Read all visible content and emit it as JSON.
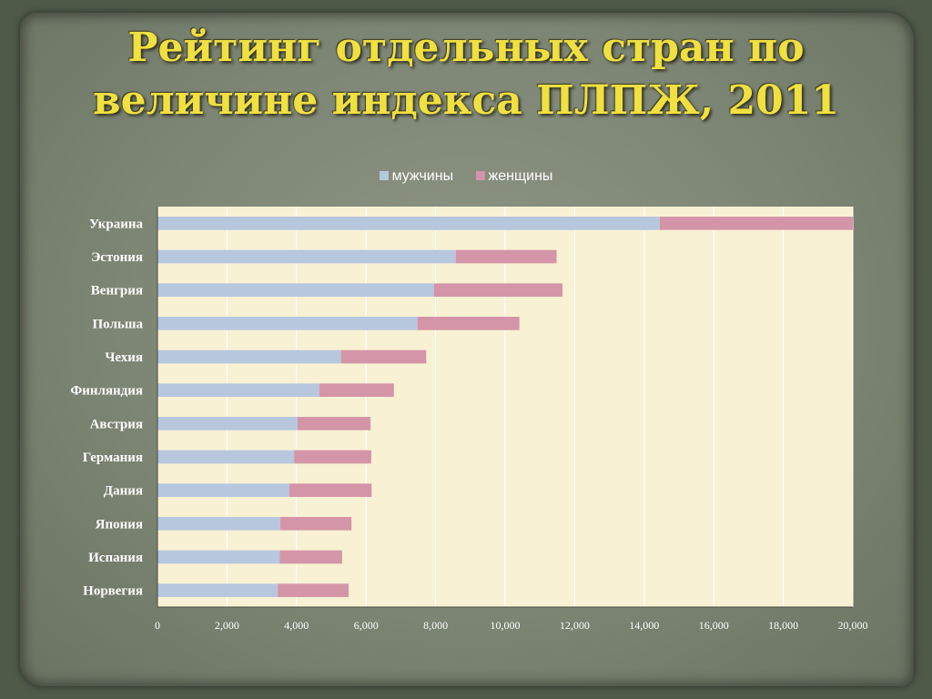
{
  "title_lines": [
    "Рейтинг отдельных стран по",
    "величине  индекса ПЛПЖ, 2011"
  ],
  "colors": {
    "men": "#b7c7de",
    "women": "#d495a8",
    "plot_bg": "#f8f1d4",
    "grid": "#ffffff"
  },
  "chart_data": {
    "type": "bar",
    "orientation": "horizontal",
    "stacked": true,
    "categories": [
      "Украина",
      "Эстония",
      "Венгрия",
      "Польша",
      "Чехия",
      "Финляндия",
      "Австрия",
      "Германия",
      "Дания",
      "Япония",
      "Испания",
      "Норвегия"
    ],
    "series": [
      {
        "name": "мужчины",
        "values": [
          14450,
          8580,
          7950,
          7480,
          5280,
          4660,
          4030,
          3930,
          3790,
          3530,
          3520,
          3460
        ]
      },
      {
        "name": "женщины",
        "values": [
          5550,
          2900,
          3700,
          2930,
          2450,
          2140,
          2100,
          2220,
          2370,
          2050,
          1790,
          2040
        ]
      }
    ],
    "xlim": [
      0,
      20000
    ],
    "xticks": [
      "0",
      "2,000",
      "4,000",
      "6,000",
      "8,000",
      "10,000",
      "12,000",
      "14,000",
      "16,000",
      "18,000",
      "20,000"
    ],
    "grid": true,
    "legend_position": "top"
  }
}
